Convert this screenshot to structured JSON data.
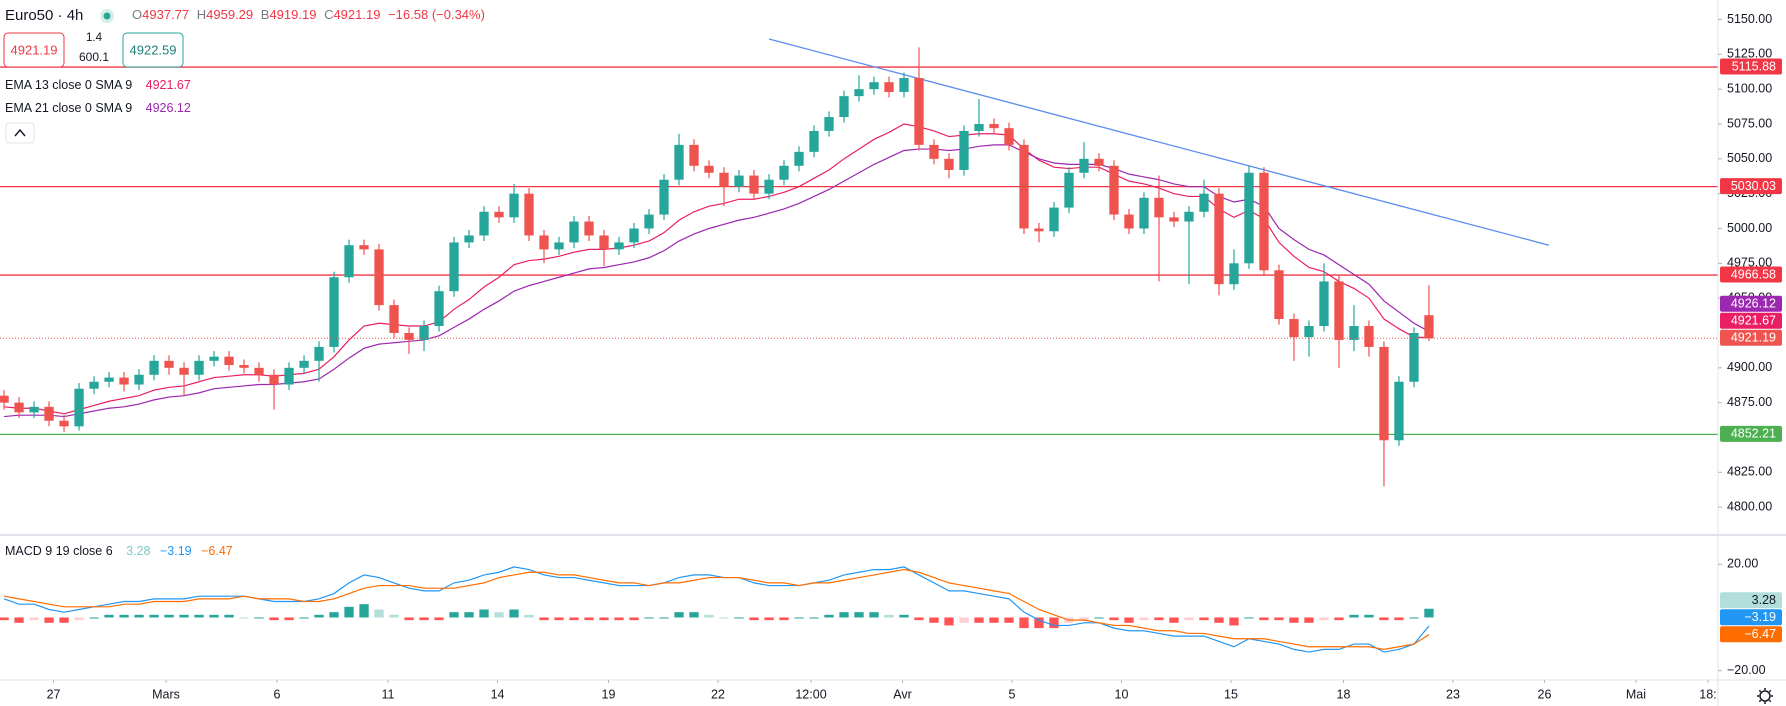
{
  "chart_data": {
    "type": "candlestick",
    "symbol": "Euro50 · 4h",
    "ohlc_letters": [
      "O",
      "H",
      "B",
      "C"
    ],
    "change_label": "−16.58 (−0.34%)",
    "trade": {
      "sell": 4921.19,
      "spread": 1.4,
      "quantity": 600.1,
      "buy": 4922.59
    },
    "colors": {
      "up": "#26a69a",
      "down": "#ef5350"
    },
    "candles": [
      [
        4880,
        4884,
        4870,
        4875
      ],
      [
        4875,
        4879,
        4864,
        4868
      ],
      [
        4868,
        4876,
        4864,
        4872
      ],
      [
        4872,
        4876,
        4858,
        4862
      ],
      [
        4862,
        4866,
        4854,
        4858
      ],
      [
        4858,
        4889,
        4855,
        4885
      ],
      [
        4885,
        4894,
        4881,
        4890
      ],
      [
        4890,
        4897,
        4886,
        4893
      ],
      [
        4893,
        4897,
        4883,
        4888
      ],
      [
        4888,
        4899,
        4884,
        4895
      ],
      [
        4895,
        4909,
        4891,
        4905
      ],
      [
        4905,
        4909,
        4895,
        4900
      ],
      [
        4900,
        4904,
        4880,
        4895
      ],
      [
        4895,
        4909,
        4891,
        4905
      ],
      [
        4905,
        4912,
        4901,
        4908
      ],
      [
        4908,
        4912,
        4898,
        4902
      ],
      [
        4902,
        4906,
        4896,
        4900
      ],
      [
        4900,
        4904,
        4890,
        4895
      ],
      [
        4895,
        4899,
        4870,
        4888
      ],
      [
        4888,
        4904,
        4884,
        4900
      ],
      [
        4900,
        4909,
        4896,
        4905
      ],
      [
        4905,
        4919,
        4890,
        4915
      ],
      [
        4915,
        4969,
        4911,
        4965
      ],
      [
        4965,
        4992,
        4961,
        4988
      ],
      [
        4988,
        4992,
        4981,
        4985
      ],
      [
        4985,
        4989,
        4941,
        4945
      ],
      [
        4945,
        4949,
        4921,
        4925
      ],
      [
        4925,
        4929,
        4910,
        4920
      ],
      [
        4920,
        4934,
        4912,
        4930
      ],
      [
        4930,
        4959,
        4926,
        4955
      ],
      [
        4955,
        4994,
        4951,
        4990
      ],
      [
        4990,
        4999,
        4986,
        4995
      ],
      [
        4995,
        5016,
        4991,
        5012
      ],
      [
        5012,
        5016,
        5004,
        5008
      ],
      [
        5008,
        5032,
        5004,
        5025
      ],
      [
        5025,
        5029,
        4991,
        4995
      ],
      [
        4995,
        4999,
        4975,
        4985
      ],
      [
        4985,
        4994,
        4981,
        4990
      ],
      [
        4990,
        5009,
        4986,
        5005
      ],
      [
        5005,
        5009,
        4991,
        4995
      ],
      [
        4995,
        4999,
        4973,
        4985
      ],
      [
        4985,
        4994,
        4981,
        4990
      ],
      [
        4990,
        5004,
        4986,
        5000
      ],
      [
        5000,
        5014,
        4996,
        5010
      ],
      [
        5010,
        5039,
        5006,
        5035
      ],
      [
        5035,
        5068,
        5031,
        5060
      ],
      [
        5060,
        5064,
        5041,
        5045
      ],
      [
        5045,
        5049,
        5036,
        5040
      ],
      [
        5040,
        5044,
        5016,
        5030
      ],
      [
        5030,
        5042,
        5026,
        5038
      ],
      [
        5038,
        5042,
        5021,
        5025
      ],
      [
        5025,
        5039,
        5021,
        5035
      ],
      [
        5035,
        5049,
        5031,
        5045
      ],
      [
        5045,
        5059,
        5041,
        5055
      ],
      [
        5055,
        5074,
        5051,
        5070
      ],
      [
        5070,
        5084,
        5066,
        5080
      ],
      [
        5080,
        5099,
        5076,
        5095
      ],
      [
        5095,
        5110,
        5091,
        5100
      ],
      [
        5100,
        5109,
        5096,
        5105
      ],
      [
        5105,
        5109,
        5094,
        5098
      ],
      [
        5098,
        5112,
        5094,
        5108
      ],
      [
        5108,
        5130,
        5056,
        5060
      ],
      [
        5060,
        5064,
        5046,
        5050
      ],
      [
        5050,
        5054,
        5036,
        5042
      ],
      [
        5042,
        5074,
        5038,
        5070
      ],
      [
        5070,
        5093,
        5066,
        5075
      ],
      [
        5075,
        5079,
        5068,
        5072
      ],
      [
        5072,
        5076,
        5056,
        5060
      ],
      [
        5060,
        5064,
        4996,
        5000
      ],
      [
        5000,
        5004,
        4990,
        4998
      ],
      [
        4998,
        5019,
        4994,
        5015
      ],
      [
        5015,
        5044,
        5011,
        5040
      ],
      [
        5040,
        5062,
        5036,
        5050
      ],
      [
        5050,
        5054,
        5041,
        5045
      ],
      [
        5045,
        5049,
        5006,
        5010
      ],
      [
        5010,
        5014,
        4996,
        5000
      ],
      [
        5000,
        5026,
        4996,
        5022
      ],
      [
        5022,
        5038,
        4962,
        5008
      ],
      [
        5008,
        5012,
        5001,
        5005
      ],
      [
        5005,
        5016,
        4960,
        5012
      ],
      [
        5012,
        5035,
        5008,
        5025
      ],
      [
        5025,
        5029,
        4952,
        4960
      ],
      [
        4960,
        4985,
        4956,
        4975
      ],
      [
        4975,
        5045,
        4971,
        5040
      ],
      [
        5040,
        5044,
        4966,
        4970
      ],
      [
        4970,
        4974,
        4931,
        4935
      ],
      [
        4935,
        4939,
        4905,
        4922
      ],
      [
        4922,
        4934,
        4908,
        4930
      ],
      [
        4930,
        4975,
        4926,
        4962
      ],
      [
        4962,
        4966,
        4900,
        4920
      ],
      [
        4920,
        4945,
        4912,
        4930
      ],
      [
        4930,
        4934,
        4908,
        4915
      ],
      [
        4915,
        4919,
        4815,
        4848
      ],
      [
        4848,
        4894,
        4844,
        4890
      ],
      [
        4890,
        4929,
        4886,
        4925
      ],
      [
        4937.77,
        4959.29,
        4919.19,
        4921.19
      ]
    ],
    "xlim": [
      -0.27,
      114.27
    ],
    "xticks": [
      {
        "value": 3.3,
        "label": "27"
      },
      {
        "value": 10.8,
        "label": "Mars"
      },
      {
        "value": 18.2,
        "label": "6"
      },
      {
        "value": 25.6,
        "label": "11"
      },
      {
        "value": 32.9,
        "label": "14"
      },
      {
        "value": 40.3,
        "label": "19"
      },
      {
        "value": 47.6,
        "label": "22"
      },
      {
        "value": 53.8,
        "label": "12:00"
      },
      {
        "value": 59.9,
        "label": "Avr"
      },
      {
        "value": 67.2,
        "label": "5"
      },
      {
        "value": 74.5,
        "label": "10"
      },
      {
        "value": 81.8,
        "label": "15"
      },
      {
        "value": 89.3,
        "label": "18"
      },
      {
        "value": 96.6,
        "label": "23"
      },
      {
        "value": 102.7,
        "label": "26"
      },
      {
        "value": 108.8,
        "label": "Mai"
      },
      {
        "value": 113.6,
        "label": "18:"
      }
    ],
    "ylim": [
      4780,
      5164
    ],
    "yticks": [
      {
        "value": 5150,
        "label": "5150.00"
      },
      {
        "value": 5125,
        "label": "5125.00"
      },
      {
        "value": 5100,
        "label": "5100.00"
      },
      {
        "value": 5075,
        "label": "5075.00"
      },
      {
        "value": 5050,
        "label": "5050.00"
      },
      {
        "value": 5025,
        "label": "5025.00"
      },
      {
        "value": 5000,
        "label": "5000.00"
      },
      {
        "value": 4975,
        "label": "4975.00"
      },
      {
        "value": 4950,
        "label": "4950.00"
      },
      {
        "value": 4900,
        "label": "4900.00"
      },
      {
        "value": 4875,
        "label": "4875.00"
      },
      {
        "value": 4825,
        "label": "4825.00"
      },
      {
        "value": 4800,
        "label": "4800.00"
      }
    ],
    "series": [
      {
        "name": "EMA 13 close 0 SMA 9",
        "color": "#e91e63",
        "values": [
          4872,
          4871,
          4871,
          4869,
          4867,
          4870,
          4873,
          4876,
          4878,
          4880,
          4884,
          4886,
          4887,
          4890,
          4893,
          4894,
          4895,
          4895,
          4894,
          4895,
          4896,
          4899,
          4908,
          4920,
          4930,
          4932,
          4931,
          4930,
          4930,
          4933,
          4942,
          4949,
          4958,
          4965,
          4974,
          4977,
          4978,
          4980,
          4983,
          4985,
          4985,
          4986,
          4988,
          4991,
          4997,
          5006,
          5012,
          5016,
          5018,
          5021,
          5021,
          5023,
          5026,
          5030,
          5036,
          5042,
          5050,
          5057,
          5064,
          5069,
          5075,
          5073,
          5070,
          5066,
          5067,
          5068,
          5068,
          5067,
          5057,
          5049,
          5044,
          5043,
          5044,
          5044,
          5039,
          5034,
          5032,
          5029,
          5025,
          5023,
          5023,
          5014,
          5008,
          5013,
          5007,
          4990,
          4980,
          4972,
          4969,
          4962,
          4957,
          4950,
          4935,
          4928,
          4922,
          4921.67
        ]
      },
      {
        "name": "EMA 21 close 0 SMA 9",
        "color": "#9c27b0",
        "values": [
          4865,
          4866,
          4866,
          4866,
          4865,
          4867,
          4869,
          4871,
          4872,
          4874,
          4877,
          4879,
          4880,
          4882,
          4885,
          4886,
          4887,
          4888,
          4888,
          4889,
          4890,
          4892,
          4899,
          4907,
          4914,
          4917,
          4918,
          4919,
          4920,
          4923,
          4929,
          4935,
          4942,
          4948,
          4955,
          4959,
          4962,
          4965,
          4968,
          4971,
          4972,
          4974,
          4976,
          4979,
          4984,
          4991,
          4996,
          5000,
          5003,
          5006,
          5008,
          5011,
          5014,
          5018,
          5023,
          5028,
          5034,
          5040,
          5046,
          5051,
          5056,
          5057,
          5057,
          5056,
          5057,
          5059,
          5060,
          5060,
          5055,
          5050,
          5047,
          5046,
          5046,
          5046,
          5043,
          5039,
          5037,
          5035,
          5032,
          5030,
          5030,
          5023,
          5019,
          5021,
          5016,
          5000,
          4992,
          4985,
          4981,
          4974,
          4967,
          4960,
          4948,
          4940,
          4932,
          4926.12
        ]
      }
    ],
    "levels": [
      {
        "value": 5115.88,
        "color": "#f23645"
      },
      {
        "value": 5030.03,
        "color": "#f23645"
      },
      {
        "value": 4966.58,
        "color": "#f23645"
      },
      {
        "value": 4852.21,
        "color": "#4caf50"
      }
    ],
    "trendline": {
      "x": [
        51,
        103
      ],
      "y": [
        5136,
        4988
      ],
      "color": "#5b8def"
    },
    "macd": {
      "type": "macd",
      "name": "MACD 9 19 close 6",
      "ylim": [
        -23.5,
        31
      ],
      "yticks": [
        {
          "value": 20,
          "label": "20.00"
        },
        {
          "value": -20,
          "label": "−20.00"
        }
      ],
      "colors": {
        "macd": "#2196f3",
        "signal": "#ff6d00",
        "pos_rising": "#26a69a",
        "pos_falling": "#b2dfdb",
        "neg_falling": "#ff5252",
        "neg_rising": "#ffcdd2"
      },
      "histogram": [
        -1,
        -2,
        -1,
        -2,
        -2,
        -1,
        0,
        1,
        1,
        1,
        1,
        1,
        1,
        1,
        1,
        1,
        0,
        0,
        -1,
        -1,
        0,
        1,
        2,
        4,
        5,
        3,
        1,
        -1,
        -1,
        -1,
        2,
        2,
        3,
        2,
        3,
        1,
        -1,
        -1,
        -1,
        -1,
        -1,
        -1,
        -1,
        0,
        0,
        2,
        2,
        1,
        0,
        0,
        -1,
        -1,
        -1,
        0,
        0,
        1,
        2,
        2,
        2,
        1,
        1,
        -1,
        -2,
        -3,
        -2,
        -2,
        -2,
        -2,
        -4,
        -4,
        -4,
        -2,
        -1,
        0,
        -1,
        -2,
        -1,
        -1,
        -2,
        -1,
        -1,
        -2,
        -3,
        0,
        -1,
        -1,
        -2,
        -2,
        -1,
        -1,
        1,
        1,
        -1,
        -1,
        0,
        3.28
      ],
      "macd": [
        7,
        5,
        5,
        3,
        2,
        3,
        4,
        5,
        6,
        6,
        7,
        7,
        7,
        8,
        8,
        8,
        8,
        7,
        6,
        6,
        6,
        7,
        9,
        13,
        16,
        15,
        13,
        11,
        10,
        10,
        13,
        14,
        16,
        17,
        19,
        18,
        16,
        15,
        15,
        14,
        13,
        12,
        12,
        12,
        13,
        15,
        16,
        16,
        15,
        15,
        13,
        12,
        12,
        12,
        13,
        14,
        16,
        17,
        18,
        18,
        19,
        16,
        13,
        10,
        10,
        9,
        8,
        7,
        2,
        -1,
        -3,
        -3,
        -2,
        -2,
        -4,
        -5,
        -5,
        -6,
        -7,
        -7,
        -7,
        -9,
        -11,
        -8,
        -9,
        -10,
        -12,
        -13,
        -12,
        -12,
        -10,
        -10,
        -13,
        -12,
        -10,
        -3.19
      ],
      "signal": [
        8,
        7,
        6,
        5,
        4,
        4,
        4,
        4,
        5,
        5,
        6,
        6,
        6,
        7,
        7,
        7,
        8,
        7,
        7,
        7,
        6,
        6,
        7,
        9,
        11,
        12,
        12,
        12,
        11,
        11,
        11,
        12,
        13,
        15,
        16,
        17,
        17,
        16,
        16,
        15,
        14,
        13,
        13,
        12,
        13,
        13,
        14,
        15,
        15,
        15,
        14,
        13,
        13,
        12,
        13,
        13,
        14,
        15,
        16,
        17,
        18,
        17,
        15,
        13,
        12,
        11,
        10,
        9,
        6,
        3,
        1,
        -1,
        -1,
        -2,
        -3,
        -3,
        -4,
        -5,
        -5,
        -6,
        -6,
        -7,
        -8,
        -8,
        -8,
        -9,
        -10,
        -11,
        -11,
        -11,
        -11,
        -11,
        -12,
        -11,
        -10,
        -6.47
      ],
      "histogram_label": "3.28",
      "macd_label": "−3.19",
      "signal_label": "−6.47"
    }
  }
}
